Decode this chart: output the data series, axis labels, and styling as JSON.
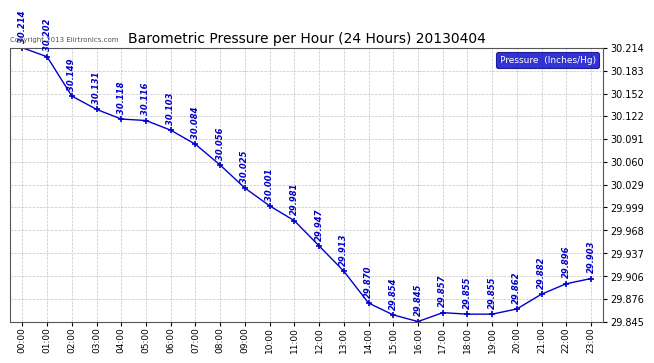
{
  "title": "Barometric Pressure per Hour (24 Hours) 20130404",
  "hours": [
    "00:00",
    "01:00",
    "02:00",
    "03:00",
    "04:00",
    "05:00",
    "06:00",
    "07:00",
    "08:00",
    "09:00",
    "10:00",
    "11:00",
    "12:00",
    "13:00",
    "14:00",
    "15:00",
    "16:00",
    "17:00",
    "18:00",
    "19:00",
    "20:00",
    "21:00",
    "22:00",
    "23:00"
  ],
  "pressure": [
    30.214,
    30.202,
    30.149,
    30.131,
    30.118,
    30.116,
    30.103,
    30.084,
    30.056,
    30.025,
    30.001,
    29.981,
    29.947,
    29.913,
    29.87,
    29.854,
    29.845,
    29.857,
    29.855,
    29.855,
    29.862,
    29.882,
    29.896,
    29.903
  ],
  "ylim_min": 29.845,
  "ylim_max": 30.214,
  "yticks": [
    30.214,
    30.183,
    30.152,
    30.122,
    30.091,
    30.06,
    30.029,
    29.999,
    29.968,
    29.937,
    29.906,
    29.876,
    29.845
  ],
  "line_color": "#0000cc",
  "marker_color": "#0000cc",
  "bg_color": "#ffffff",
  "grid_color": "#aaaaaa",
  "copyright_text": "Copyright 2013 Eiirtronics.com",
  "legend_label": "Pressure  (Inches/Hg)",
  "legend_bg": "#0000cc",
  "legend_text_color": "#ffffff"
}
